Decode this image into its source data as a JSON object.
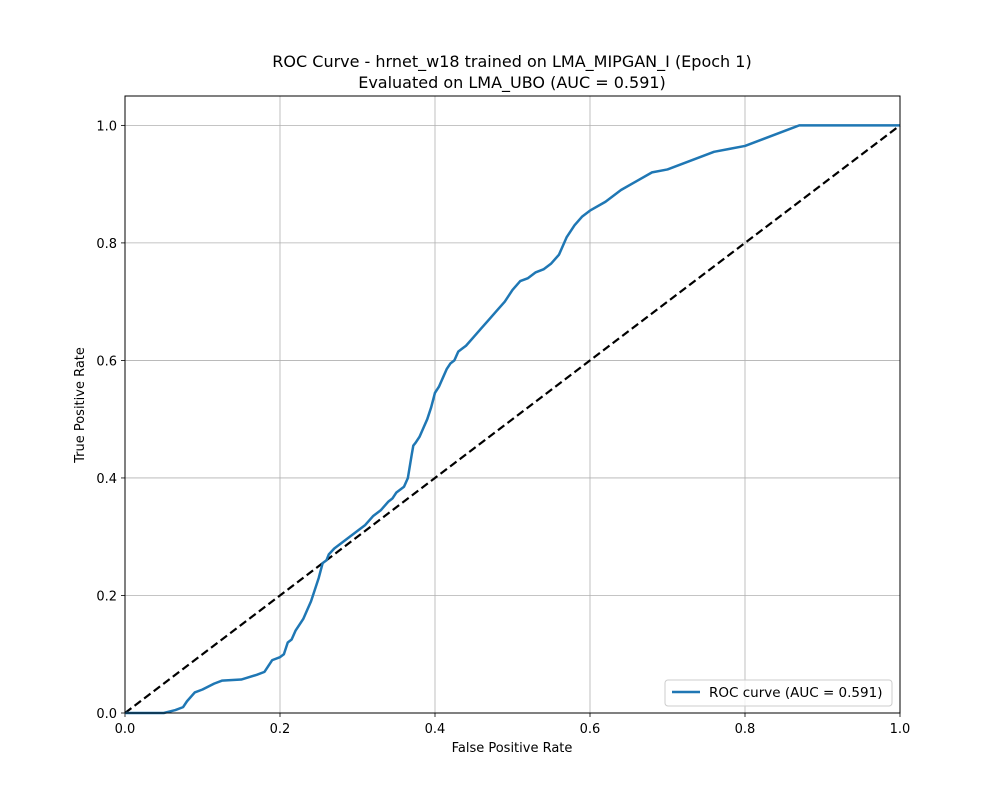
{
  "chart_data": {
    "type": "line",
    "title": "ROC Curve - hrnet_w18 trained on LMA_MIPGAN_I (Epoch 1)",
    "subtitle": "Evaluated on LMA_UBO (AUC = 0.591)",
    "xlabel": "False Positive Rate",
    "ylabel": "True Positive Rate",
    "xlim": [
      0.0,
      1.0
    ],
    "ylim": [
      0.0,
      1.05
    ],
    "xticks": [
      "0.0",
      "0.2",
      "0.4",
      "0.6",
      "0.8",
      "1.0"
    ],
    "yticks": [
      "0.0",
      "0.2",
      "0.4",
      "0.6",
      "0.8",
      "1.0"
    ],
    "grid": true,
    "legend_position": "lower right",
    "series": [
      {
        "name": "ROC curve (AUC = 0.591)",
        "color": "#1f77b4",
        "style": "solid",
        "x": [
          0.0,
          0.05,
          0.065,
          0.075,
          0.08,
          0.09,
          0.1,
          0.115,
          0.125,
          0.15,
          0.17,
          0.18,
          0.185,
          0.19,
          0.2,
          0.205,
          0.21,
          0.215,
          0.22,
          0.225,
          0.23,
          0.235,
          0.24,
          0.245,
          0.25,
          0.255,
          0.26,
          0.263,
          0.27,
          0.28,
          0.29,
          0.3,
          0.31,
          0.32,
          0.33,
          0.34,
          0.345,
          0.35,
          0.36,
          0.365,
          0.37,
          0.372,
          0.375,
          0.38,
          0.385,
          0.39,
          0.395,
          0.4,
          0.405,
          0.41,
          0.415,
          0.42,
          0.425,
          0.43,
          0.435,
          0.44,
          0.45,
          0.46,
          0.47,
          0.48,
          0.49,
          0.5,
          0.51,
          0.52,
          0.53,
          0.54,
          0.55,
          0.56,
          0.57,
          0.58,
          0.59,
          0.6,
          0.62,
          0.64,
          0.66,
          0.68,
          0.7,
          0.72,
          0.74,
          0.76,
          0.78,
          0.8,
          0.82,
          0.84,
          0.86,
          0.87,
          0.89,
          0.91,
          1.0
        ],
        "y": [
          0.0,
          0.0,
          0.005,
          0.01,
          0.02,
          0.035,
          0.04,
          0.05,
          0.055,
          0.057,
          0.065,
          0.07,
          0.08,
          0.09,
          0.095,
          0.1,
          0.12,
          0.125,
          0.14,
          0.15,
          0.16,
          0.175,
          0.19,
          0.21,
          0.23,
          0.255,
          0.26,
          0.27,
          0.28,
          0.29,
          0.3,
          0.31,
          0.32,
          0.335,
          0.345,
          0.36,
          0.365,
          0.375,
          0.385,
          0.4,
          0.44,
          0.455,
          0.46,
          0.47,
          0.485,
          0.5,
          0.52,
          0.545,
          0.555,
          0.57,
          0.585,
          0.595,
          0.6,
          0.615,
          0.62,
          0.625,
          0.64,
          0.655,
          0.67,
          0.685,
          0.7,
          0.72,
          0.735,
          0.74,
          0.75,
          0.755,
          0.765,
          0.78,
          0.81,
          0.83,
          0.845,
          0.855,
          0.87,
          0.89,
          0.905,
          0.92,
          0.925,
          0.935,
          0.945,
          0.955,
          0.96,
          0.965,
          0.975,
          0.985,
          0.995,
          1.0,
          1.0,
          1.0,
          1.0
        ]
      },
      {
        "name": "",
        "color": "#000000",
        "style": "dashed",
        "x": [
          0.0,
          1.0
        ],
        "y": [
          0.0,
          1.0
        ]
      }
    ]
  }
}
